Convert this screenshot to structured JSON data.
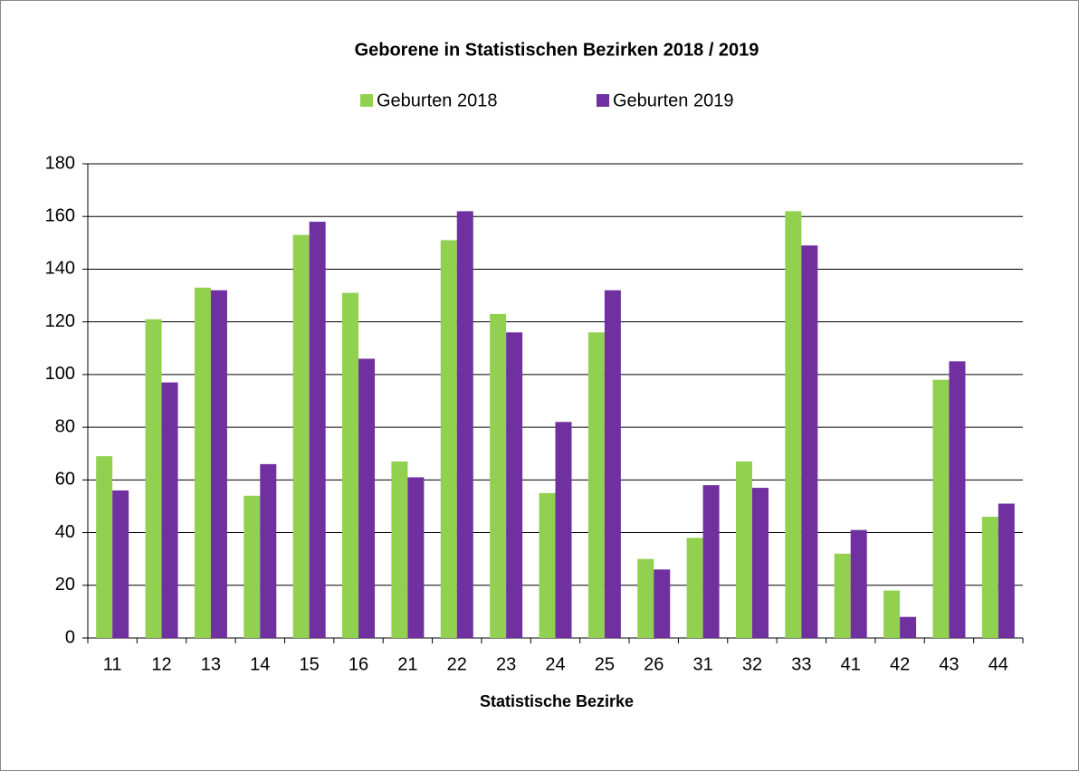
{
  "chart_data": {
    "type": "bar",
    "title": "Geborene in Statistischen Bezirken 2018 / 2019",
    "x_label": "Statistische Bezirke",
    "categories": [
      "11",
      "12",
      "13",
      "14",
      "15",
      "16",
      "21",
      "22",
      "23",
      "24",
      "25",
      "26",
      "31",
      "32",
      "33",
      "41",
      "42",
      "43",
      "44"
    ],
    "series": [
      {
        "name": "Geburten 2018",
        "color": "#92d050",
        "values": [
          69,
          121,
          133,
          54,
          153,
          131,
          67,
          151,
          123,
          55,
          116,
          30,
          38,
          67,
          162,
          32,
          18,
          98,
          46
        ]
      },
      {
        "name": "Geburten 2019",
        "color": "#7030a0",
        "values": [
          56,
          97,
          132,
          66,
          158,
          106,
          61,
          162,
          116,
          82,
          132,
          26,
          58,
          57,
          149,
          41,
          8,
          105,
          51
        ]
      }
    ],
    "ylim": [
      0,
      180
    ],
    "yticks": [
      0,
      20,
      40,
      60,
      80,
      100,
      120,
      140,
      160,
      180
    ],
    "grid": true,
    "legend": "top"
  }
}
